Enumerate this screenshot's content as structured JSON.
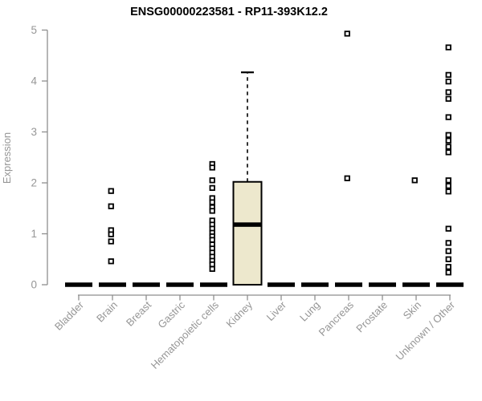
{
  "chart_data": {
    "type": "boxplot",
    "title": "ENSG00000223581 - RP11-393K12.2",
    "ylabel": "Expression",
    "xlabel": "",
    "ylim": [
      0,
      5
    ],
    "yticks": [
      0,
      1,
      2,
      3,
      4,
      5
    ],
    "grid": false,
    "axis_color": "#8E8E8E",
    "tick_label_color": "#969696",
    "title_color": "#000000",
    "box_fill": "#EDE8CD",
    "box_stroke": "#000000",
    "point_shape": "open-square",
    "categories": [
      "Bladder",
      "Brain",
      "Breast",
      "Gastric",
      "Hematopoietic cells",
      "Kidney",
      "Liver",
      "Lung",
      "Pancreas",
      "Prostate",
      "Skin",
      "Unknown / Other"
    ],
    "boxes": [
      {
        "category": "Bladder",
        "median": 0,
        "q1": 0,
        "q3": 0,
        "whisker_low": 0,
        "whisker_high": 0,
        "outliers": []
      },
      {
        "category": "Brain",
        "median": 0,
        "q1": 0,
        "q3": 0,
        "whisker_low": 0,
        "whisker_high": 0,
        "outliers": [
          1.84,
          1.54,
          1.07,
          0.99,
          0.85,
          0.46
        ]
      },
      {
        "category": "Breast",
        "median": 0,
        "q1": 0,
        "q3": 0,
        "whisker_low": 0,
        "whisker_high": 0,
        "outliers": []
      },
      {
        "category": "Gastric",
        "median": 0,
        "q1": 0,
        "q3": 0,
        "whisker_low": 0,
        "whisker_high": 0,
        "outliers": []
      },
      {
        "category": "Hematopoietic cells",
        "median": 0,
        "q1": 0,
        "q3": 0,
        "whisker_low": 0,
        "whisker_high": 0,
        "outliers": [
          2.37,
          2.3,
          2.05,
          1.9,
          1.7,
          1.62,
          1.52,
          1.45,
          1.26,
          1.18,
          1.1,
          1.02,
          0.95,
          0.88,
          0.79,
          0.71,
          0.63,
          0.55,
          0.47,
          0.4,
          0.31
        ]
      },
      {
        "category": "Kidney",
        "median": 1.18,
        "q1": 0,
        "q3": 2.02,
        "whisker_low": 0,
        "whisker_high": 4.17,
        "outliers": []
      },
      {
        "category": "Liver",
        "median": 0,
        "q1": 0,
        "q3": 0,
        "whisker_low": 0,
        "whisker_high": 0,
        "outliers": []
      },
      {
        "category": "Lung",
        "median": 0,
        "q1": 0,
        "q3": 0,
        "whisker_low": 0,
        "whisker_high": 0,
        "outliers": []
      },
      {
        "category": "Pancreas",
        "median": 0,
        "q1": 0,
        "q3": 0,
        "whisker_low": 0,
        "whisker_high": 0,
        "outliers": [
          4.93,
          2.09
        ]
      },
      {
        "category": "Prostate",
        "median": 0,
        "q1": 0,
        "q3": 0,
        "whisker_low": 0,
        "whisker_high": 0,
        "outliers": []
      },
      {
        "category": "Skin",
        "median": 0,
        "q1": 0,
        "q3": 0,
        "whisker_low": 0,
        "whisker_high": 0,
        "outliers": [
          2.05
        ]
      },
      {
        "category": "Unknown / Other",
        "median": 0,
        "q1": 0,
        "q3": 0,
        "whisker_low": 0,
        "whisker_high": 0,
        "outliers": [
          4.66,
          4.12,
          3.99,
          3.78,
          3.65,
          3.29,
          2.94,
          2.83,
          2.71,
          2.6,
          2.05,
          1.94,
          1.83,
          1.1,
          0.82,
          0.66,
          0.5,
          0.35,
          0.24
        ]
      }
    ]
  }
}
